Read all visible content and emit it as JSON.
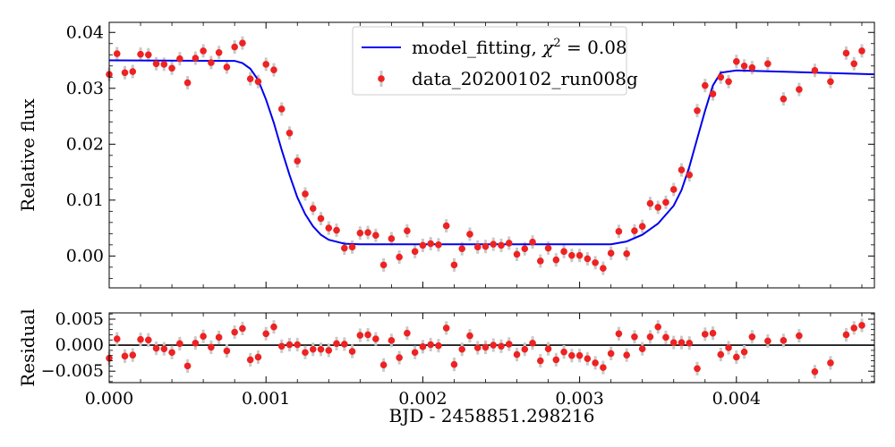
{
  "chart_data": [
    {
      "type": "scatter",
      "panel": "main",
      "ylabel": "Relative flux",
      "xlim": [
        0,
        0.00488
      ],
      "ylim": [
        -0.0057,
        0.0418
      ],
      "xticks": [
        0,
        0.001,
        0.002,
        0.003,
        0.004
      ],
      "yticks": [
        0.0,
        0.01,
        0.02,
        0.03,
        0.04
      ],
      "ytick_labels": [
        "0.00",
        "0.01",
        "0.02",
        "0.03",
        "0.04"
      ],
      "legend_position": "top-center",
      "series": [
        {
          "name": "model_fitting, χ² = 0.08",
          "kind": "line",
          "color": "#0000ee",
          "x": [
            0.0,
            0.0008,
            0.00085,
            0.0009,
            0.00095,
            0.001,
            0.00105,
            0.0011,
            0.00115,
            0.0012,
            0.00125,
            0.0013,
            0.00135,
            0.0014,
            0.0015,
            0.0016,
            0.0032,
            0.0033,
            0.0034,
            0.0035,
            0.0036,
            0.00365,
            0.0037,
            0.00375,
            0.0038,
            0.00385,
            0.0039,
            0.004,
            0.00488
          ],
          "y": [
            0.035,
            0.0349,
            0.0345,
            0.0335,
            0.0315,
            0.028,
            0.0238,
            0.019,
            0.0145,
            0.0105,
            0.0075,
            0.0053,
            0.0038,
            0.0029,
            0.0022,
            0.0021,
            0.0021,
            0.0026,
            0.0038,
            0.0058,
            0.009,
            0.0118,
            0.016,
            0.021,
            0.026,
            0.0305,
            0.0328,
            0.0332,
            0.0325
          ]
        },
        {
          "name": "data_20200102_run008g",
          "kind": "points",
          "color": "#ee2222",
          "errorbar_color": "#c8c8c8",
          "yerr": 0.0012,
          "x": [
            0.0,
            5e-05,
            0.0001,
            0.00015,
            0.0002,
            0.00025,
            0.0003,
            0.00035,
            0.0004,
            0.00045,
            0.0005,
            0.00055,
            0.0006,
            0.00065,
            0.0007,
            0.00075,
            0.0008,
            0.00085,
            0.0009,
            0.00095,
            0.001,
            0.00105,
            0.0011,
            0.00115,
            0.0012,
            0.00125,
            0.0013,
            0.00135,
            0.0014,
            0.00145,
            0.0015,
            0.00155,
            0.0016,
            0.00165,
            0.0017,
            0.00175,
            0.0018,
            0.00185,
            0.0019,
            0.00195,
            0.002,
            0.00205,
            0.0021,
            0.00215,
            0.0022,
            0.00225,
            0.0023,
            0.00235,
            0.0024,
            0.00245,
            0.0025,
            0.00255,
            0.0026,
            0.00265,
            0.0027,
            0.00275,
            0.0028,
            0.00285,
            0.0029,
            0.00295,
            0.003,
            0.00305,
            0.0031,
            0.00315,
            0.0032,
            0.00325,
            0.0033,
            0.00335,
            0.0034,
            0.00345,
            0.0035,
            0.00355,
            0.0036,
            0.00365,
            0.0037,
            0.00375,
            0.0038,
            0.00385,
            0.0039,
            0.00395,
            0.004,
            0.00405,
            0.0041,
            0.0042,
            0.0043,
            0.0044,
            0.0045,
            0.0046,
            0.0047,
            0.00475,
            0.0048
          ],
          "y": [
            0.0325,
            0.0362,
            0.0328,
            0.033,
            0.0361,
            0.036,
            0.0344,
            0.0343,
            0.0336,
            0.0353,
            0.031,
            0.0354,
            0.0367,
            0.0346,
            0.0364,
            0.0338,
            0.0374,
            0.0381,
            0.0317,
            0.0312,
            0.0343,
            0.0333,
            0.0263,
            0.022,
            0.017,
            0.0111,
            0.0085,
            0.0067,
            0.005,
            0.0046,
            0.0014,
            0.0016,
            0.0041,
            0.0042,
            0.0037,
            -0.0016,
            0.0031,
            -0.0002,
            0.0045,
            0.0008,
            0.0019,
            0.0022,
            0.002,
            0.0054,
            -0.0016,
            0.0013,
            0.0039,
            0.0016,
            0.0017,
            0.0021,
            0.0019,
            0.0023,
            0.0003,
            0.0013,
            0.0025,
            -0.0009,
            0.0014,
            -0.0007,
            0.0008,
            0.0001,
            0.0001,
            -0.0005,
            -0.0012,
            -0.0022,
            0.0005,
            0.0044,
            0.0004,
            0.0045,
            0.0053,
            0.0094,
            0.0087,
            0.0096,
            0.0119,
            0.0154,
            0.0145,
            0.026,
            0.0305,
            0.029,
            0.032,
            0.0312,
            0.0348,
            0.034,
            0.0337,
            0.0344,
            0.0281,
            0.0298,
            0.0332,
            0.0312,
            0.0363,
            0.0344,
            0.0367
          ]
        }
      ]
    },
    {
      "type": "scatter",
      "panel": "residual",
      "ylabel": "Residual",
      "xlabel": "BJD - 2458851.298216",
      "xlim": [
        0,
        0.00488
      ],
      "ylim": [
        -0.0072,
        0.0062
      ],
      "xticks": [
        0,
        0.001,
        0.002,
        0.003,
        0.004
      ],
      "xtick_labels": [
        "0.000",
        "0.001",
        "0.002",
        "0.003",
        "0.004"
      ],
      "yticks": [
        -0.005,
        0.0,
        0.005
      ],
      "ytick_labels": [
        "−0.005",
        "0.000",
        "0.005"
      ],
      "zero_line": true,
      "series": [
        {
          "kind": "points",
          "color": "#ee2222",
          "errorbar_color": "#c8c8c8",
          "yerr": 0.0013,
          "x": [
            0.0,
            5e-05,
            0.0001,
            0.00015,
            0.0002,
            0.00025,
            0.0003,
            0.00035,
            0.0004,
            0.00045,
            0.0005,
            0.00055,
            0.0006,
            0.00065,
            0.0007,
            0.00075,
            0.0008,
            0.00085,
            0.0009,
            0.00095,
            0.001,
            0.00105,
            0.0011,
            0.00115,
            0.0012,
            0.00125,
            0.0013,
            0.00135,
            0.0014,
            0.00145,
            0.0015,
            0.00155,
            0.0016,
            0.00165,
            0.0017,
            0.00175,
            0.0018,
            0.00185,
            0.0019,
            0.00195,
            0.002,
            0.00205,
            0.0021,
            0.00215,
            0.0022,
            0.00225,
            0.0023,
            0.00235,
            0.0024,
            0.00245,
            0.0025,
            0.00255,
            0.0026,
            0.00265,
            0.0027,
            0.00275,
            0.0028,
            0.00285,
            0.0029,
            0.00295,
            0.003,
            0.00305,
            0.0031,
            0.00315,
            0.0032,
            0.00325,
            0.0033,
            0.00335,
            0.0034,
            0.00345,
            0.0035,
            0.00355,
            0.0036,
            0.00365,
            0.0037,
            0.00375,
            0.0038,
            0.00385,
            0.0039,
            0.00395,
            0.004,
            0.00405,
            0.0041,
            0.0042,
            0.0043,
            0.0044,
            0.0045,
            0.0046,
            0.0047,
            0.00475,
            0.0048
          ],
          "y": [
            -0.0025,
            0.0012,
            -0.0021,
            -0.0019,
            0.0011,
            0.001,
            -0.0006,
            -0.0007,
            -0.0014,
            0.0003,
            -0.004,
            0.0004,
            0.0017,
            -0.0004,
            0.0015,
            -0.0011,
            0.0025,
            0.0032,
            -0.0028,
            -0.0023,
            0.0022,
            0.0035,
            -0.0002,
            0.0001,
            0.0001,
            -0.0014,
            -0.0008,
            -0.0008,
            -0.001,
            0.0003,
            0.0002,
            -0.0012,
            0.0019,
            0.002,
            0.0012,
            -0.0038,
            0.0009,
            -0.0024,
            0.0023,
            -0.0014,
            -0.0003,
            0.0001,
            -0.0001,
            0.0033,
            -0.0037,
            -0.0008,
            0.0018,
            -0.0005,
            -0.0004,
            0.0,
            -0.0002,
            0.0002,
            -0.0018,
            -0.0008,
            0.0004,
            -0.003,
            -0.0007,
            -0.0028,
            -0.0013,
            -0.002,
            -0.002,
            -0.0026,
            -0.0034,
            -0.0043,
            -0.0016,
            0.0022,
            -0.0019,
            0.0016,
            -0.0007,
            0.0016,
            0.0035,
            0.0015,
            0.0005,
            0.0005,
            0.0004,
            -0.0045,
            0.0021,
            0.0023,
            -0.0018,
            -0.0005,
            -0.0023,
            -0.0013,
            0.0016,
            0.0008,
            0.0009,
            0.0018,
            -0.0051,
            -0.0034,
            0.002,
            0.0033,
            0.0038
          ]
        }
      ]
    }
  ]
}
